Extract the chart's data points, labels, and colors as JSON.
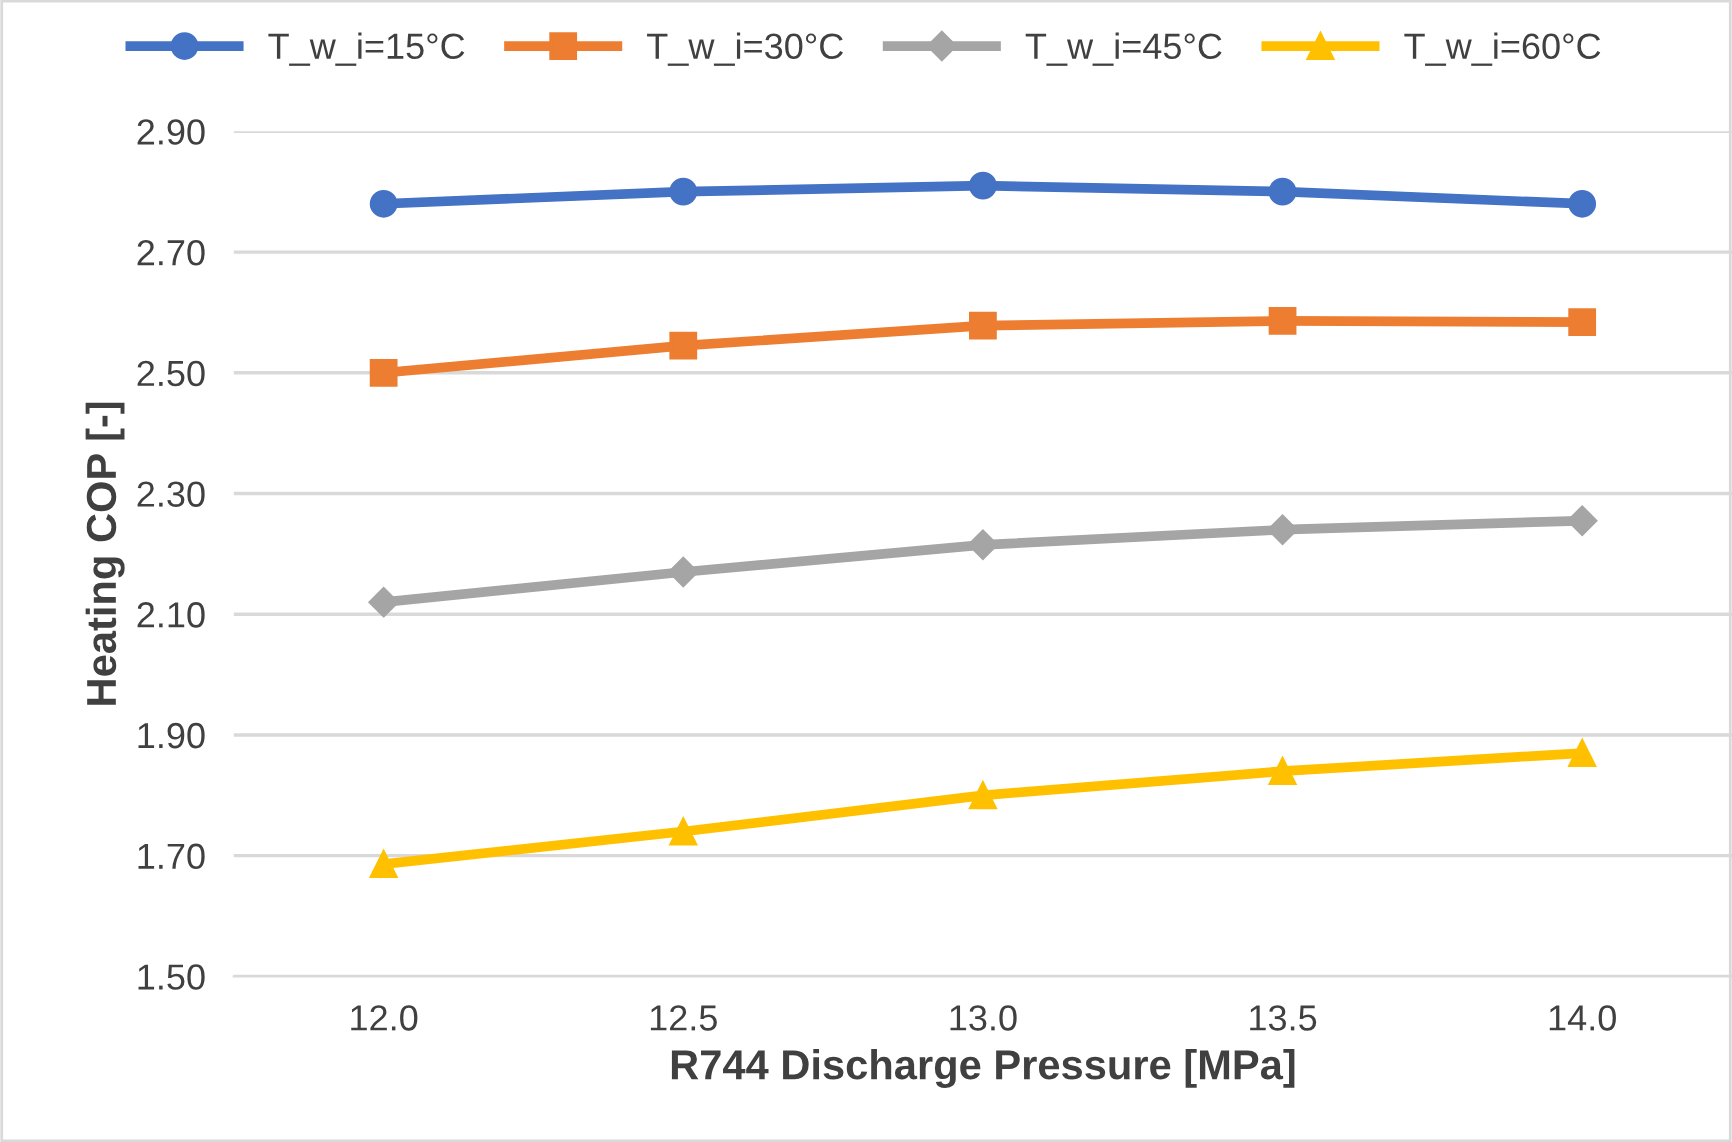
{
  "chart_data": {
    "type": "line",
    "xlabel": "R744 Discharge Pressure [MPa]",
    "ylabel": "Heating COP [-]",
    "categories": [
      "12.0",
      "12.5",
      "13.0",
      "13.5",
      "14.0"
    ],
    "series": [
      {
        "name": "T_w_i=15°C",
        "color": "#4472c4",
        "marker": "circle",
        "values": [
          2.78,
          2.8,
          2.81,
          2.8,
          2.78
        ]
      },
      {
        "name": "T_w_i=30°C",
        "color": "#ed7d31",
        "marker": "square",
        "values": [
          2.5,
          2.545,
          2.578,
          2.586,
          2.584
        ]
      },
      {
        "name": "T_w_i=45°C",
        "color": "#a5a5a5",
        "marker": "diamond",
        "values": [
          2.12,
          2.17,
          2.215,
          2.24,
          2.255
        ]
      },
      {
        "name": "T_w_i=60°C",
        "color": "#ffc000",
        "marker": "triangle",
        "values": [
          1.686,
          1.74,
          1.8,
          1.84,
          1.87
        ]
      }
    ],
    "ylim": [
      1.5,
      2.9
    ],
    "yticks": [
      {
        "value": 1.5,
        "label": "1.50"
      },
      {
        "value": 1.7,
        "label": "1.70"
      },
      {
        "value": 1.9,
        "label": "1.90"
      },
      {
        "value": 2.1,
        "label": "2.10"
      },
      {
        "value": 2.3,
        "label": "2.30"
      },
      {
        "value": 2.5,
        "label": "2.50"
      },
      {
        "value": 2.7,
        "label": "2.70"
      },
      {
        "value": 2.9,
        "label": "2.90"
      }
    ],
    "grid": "y",
    "legend": "top",
    "line_style": "solid"
  }
}
